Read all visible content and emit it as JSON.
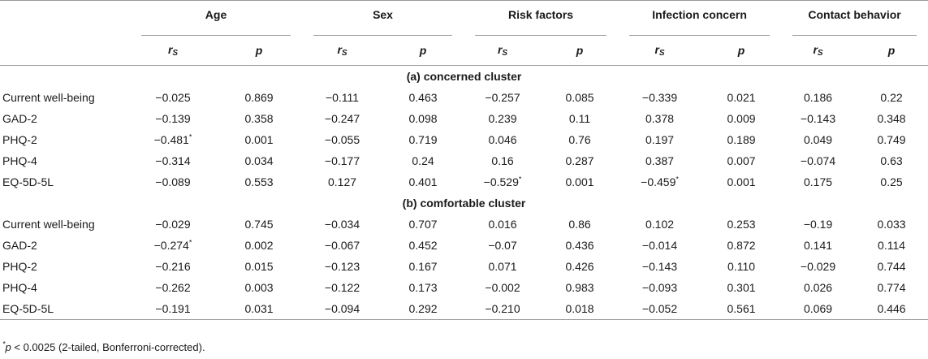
{
  "headers": {
    "groups": [
      "Age",
      "Sex",
      "Risk factors",
      "Infection concern",
      "Contact behavior"
    ],
    "rs_symbol": "r",
    "rs_subscript": "S",
    "p_label": "p"
  },
  "sections": [
    {
      "title": "(a) concerned cluster",
      "rows": [
        {
          "label": "Current well-being",
          "cells": [
            "−0.025",
            "0.869",
            "−0.111",
            "0.463",
            "−0.257",
            "0.085",
            "−0.339",
            "0.021",
            "0.186",
            "0.22"
          ],
          "sig": [
            false,
            false,
            false,
            false,
            false,
            false,
            false,
            false,
            false,
            false
          ]
        },
        {
          "label": "GAD-2",
          "cells": [
            "−0.139",
            "0.358",
            "−0.247",
            "0.098",
            "0.239",
            "0.11",
            "0.378",
            "0.009",
            "−0.143",
            "0.348"
          ],
          "sig": [
            false,
            false,
            false,
            false,
            false,
            false,
            false,
            false,
            false,
            false
          ]
        },
        {
          "label": "PHQ-2",
          "cells": [
            "−0.481",
            "0.001",
            "−0.055",
            "0.719",
            "0.046",
            "0.76",
            "0.197",
            "0.189",
            "0.049",
            "0.749"
          ],
          "sig": [
            true,
            false,
            false,
            false,
            false,
            false,
            false,
            false,
            false,
            false
          ]
        },
        {
          "label": "PHQ-4",
          "cells": [
            "−0.314",
            "0.034",
            "−0.177",
            "0.24",
            "0.16",
            "0.287",
            "0.387",
            "0.007",
            "−0.074",
            "0.63"
          ],
          "sig": [
            false,
            false,
            false,
            false,
            false,
            false,
            false,
            false,
            false,
            false
          ]
        },
        {
          "label": "EQ-5D-5L",
          "cells": [
            "−0.089",
            "0.553",
            "0.127",
            "0.401",
            "−0.529",
            "0.001",
            "−0.459",
            "0.001",
            "0.175",
            "0.25"
          ],
          "sig": [
            false,
            false,
            false,
            false,
            true,
            false,
            true,
            false,
            false,
            false
          ]
        }
      ]
    },
    {
      "title": "(b) comfortable cluster",
      "rows": [
        {
          "label": "Current well-being",
          "cells": [
            "−0.029",
            "0.745",
            "−0.034",
            "0.707",
            "0.016",
            "0.86",
            "0.102",
            "0.253",
            "−0.19",
            "0.033"
          ],
          "sig": [
            false,
            false,
            false,
            false,
            false,
            false,
            false,
            false,
            false,
            false
          ]
        },
        {
          "label": "GAD-2",
          "cells": [
            "−0.274",
            "0.002",
            "−0.067",
            "0.452",
            "−0.07",
            "0.436",
            "−0.014",
            "0.872",
            "0.141",
            "0.114"
          ],
          "sig": [
            true,
            false,
            false,
            false,
            false,
            false,
            false,
            false,
            false,
            false
          ]
        },
        {
          "label": "PHQ-2",
          "cells": [
            "−0.216",
            "0.015",
            "−0.123",
            "0.167",
            "0.071",
            "0.426",
            "−0.143",
            "0.110",
            "−0.029",
            "0.744"
          ],
          "sig": [
            false,
            false,
            false,
            false,
            false,
            false,
            false,
            false,
            false,
            false
          ]
        },
        {
          "label": "PHQ-4",
          "cells": [
            "−0.262",
            "0.003",
            "−0.122",
            "0.173",
            "−0.002",
            "0.983",
            "−0.093",
            "0.301",
            "0.026",
            "0.774"
          ],
          "sig": [
            false,
            false,
            false,
            false,
            false,
            false,
            false,
            false,
            false,
            false
          ]
        },
        {
          "label": "EQ-5D-5L",
          "cells": [
            "−0.191",
            "0.031",
            "−0.094",
            "0.292",
            "−0.210",
            "0.018",
            "−0.052",
            "0.561",
            "0.069",
            "0.446"
          ],
          "sig": [
            false,
            false,
            false,
            false,
            false,
            false,
            false,
            false,
            false,
            false
          ]
        }
      ]
    }
  ],
  "footnote": {
    "mark": "*",
    "p": "p",
    "text": " < 0.0025 (2-tailed, Bonferroni-corrected)."
  }
}
